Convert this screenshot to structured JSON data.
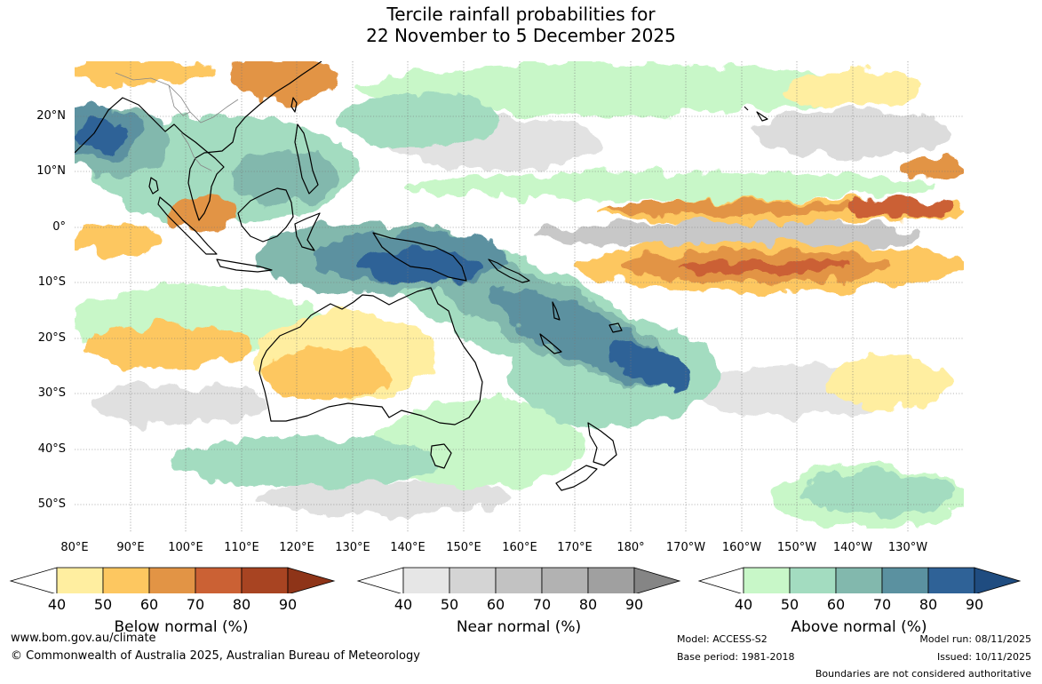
{
  "title": {
    "line1": "Tercile rainfall probabilities for",
    "line2": "22 November to 5 December 2025"
  },
  "map": {
    "lat_labels": [
      "20°N",
      "10°N",
      "0°",
      "10°S",
      "20°S",
      "30°S",
      "40°S",
      "50°S"
    ],
    "lon_labels": [
      "80°E",
      "90°E",
      "100°E",
      "110°E",
      "120°E",
      "130°E",
      "140°E",
      "150°E",
      "160°E",
      "170°E",
      "180°",
      "170°W",
      "160°W",
      "150°W",
      "140°W",
      "130°W"
    ]
  },
  "legends": [
    {
      "title": "Below normal (%)",
      "ticks": [
        "40",
        "50",
        "60",
        "70",
        "80",
        "90"
      ],
      "colors": [
        "#ffeea0",
        "#fdc760",
        "#e29445",
        "#cb6134",
        "#a84422",
        "#8e3418"
      ]
    },
    {
      "title": "Near normal (%)",
      "ticks": [
        "40",
        "50",
        "60",
        "70",
        "80",
        "90"
      ],
      "colors": [
        "#e6e6e6",
        "#d4d4d4",
        "#c2c2c2",
        "#b2b2b2",
        "#a0a0a0",
        "#858585"
      ]
    },
    {
      "title": "Above normal (%)",
      "ticks": [
        "40",
        "50",
        "60",
        "70",
        "80",
        "90"
      ],
      "colors": [
        "#c8f7c8",
        "#a3dcc0",
        "#82b8ad",
        "#5b91a0",
        "#2f6297",
        "#1f4c80"
      ]
    }
  ],
  "footer": {
    "website": "www.bom.gov.au/climate",
    "copyright": "© Commonwealth of Australia 2025, Australian Bureau of Meteorology",
    "model": "Model: ACCESS-S2",
    "base_period": "Base period: 1981-2018",
    "model_run": "Model run: 08/11/2025",
    "issued": "Issued: 10/11/2025",
    "disclaimer": "Boundaries are not considered authoritative"
  }
}
